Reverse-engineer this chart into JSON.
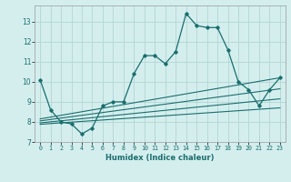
{
  "xlabel": "Humidex (Indice chaleur)",
  "background_color": "#d4eeee",
  "grid_color": "#b8d8d8",
  "line_color": "#1a6e6e",
  "x_data": [
    0,
    1,
    2,
    3,
    4,
    5,
    6,
    7,
    8,
    9,
    10,
    11,
    12,
    13,
    14,
    15,
    16,
    17,
    18,
    19,
    20,
    21,
    22,
    23
  ],
  "y_main": [
    10.1,
    8.6,
    8.0,
    7.9,
    7.4,
    7.7,
    8.8,
    9.0,
    9.0,
    10.4,
    11.3,
    11.3,
    10.9,
    11.5,
    13.4,
    12.8,
    12.7,
    12.7,
    11.6,
    10.0,
    9.6,
    8.8,
    9.6,
    10.2
  ],
  "trend_lines": [
    {
      "x_start": 0,
      "y_start": 8.15,
      "x_end": 23,
      "y_end": 10.2
    },
    {
      "x_start": 0,
      "y_start": 8.05,
      "x_end": 23,
      "y_end": 9.65
    },
    {
      "x_start": 0,
      "y_start": 7.95,
      "x_end": 23,
      "y_end": 9.15
    },
    {
      "x_start": 0,
      "y_start": 7.88,
      "x_end": 23,
      "y_end": 8.7
    }
  ],
  "ylim": [
    7,
    13.8
  ],
  "xlim": [
    -0.5,
    23.5
  ],
  "yticks": [
    7,
    8,
    9,
    10,
    11,
    12,
    13
  ],
  "xtick_labels": [
    "0",
    "1",
    "2",
    "3",
    "4",
    "5",
    "6",
    "7",
    "8",
    "9",
    "10",
    "11",
    "12",
    "13",
    "14",
    "15",
    "16",
    "17",
    "18",
    "19",
    "20",
    "21",
    "22",
    "23"
  ]
}
